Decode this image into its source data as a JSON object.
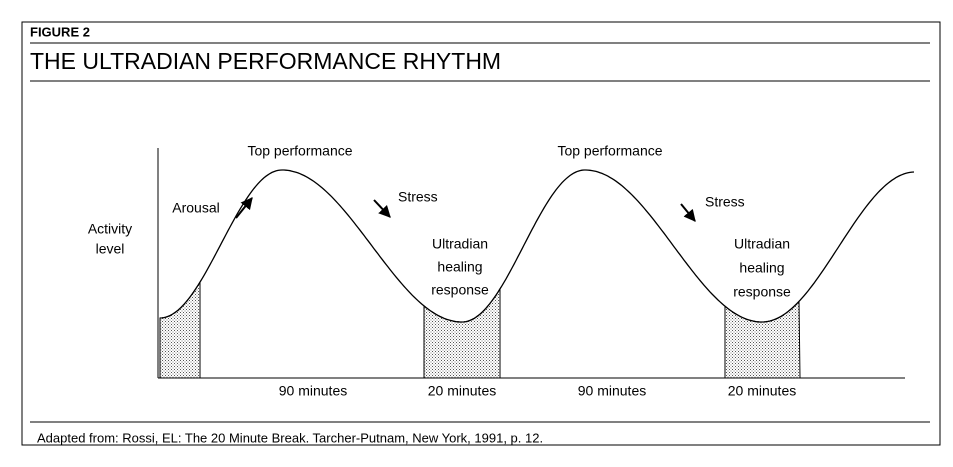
{
  "figure_label": "FIGURE 2",
  "title": "THE ULTRADIAN PERFORMANCE RHYTHM",
  "y_label": [
    "Activity",
    "level"
  ],
  "annotations": {
    "top_performance_1": "Top performance",
    "arousal": "Arousal",
    "stress_1": "Stress",
    "healing_1": [
      "Ultradian",
      "healing",
      "response"
    ],
    "top_performance_2": "Top performance",
    "stress_2": "Stress",
    "healing_2": [
      "Ultradian",
      "healing",
      "response"
    ]
  },
  "durations": [
    "90 minutes",
    "20 minutes",
    "90 minutes",
    "20 minutes"
  ],
  "source": "Adapted from: Rossi, EL: The 20 Minute Break. Tarcher-Putnam, New York, 1991, p. 12."
}
